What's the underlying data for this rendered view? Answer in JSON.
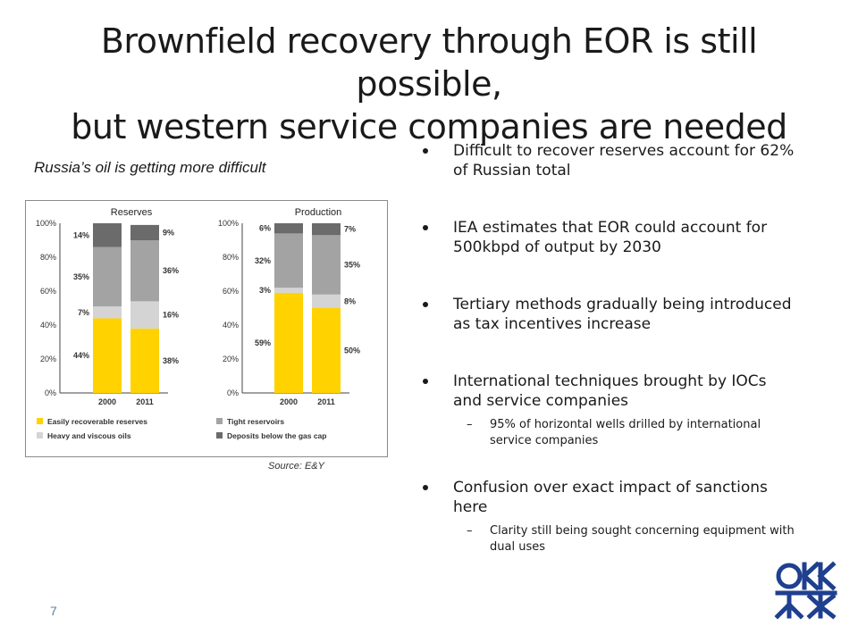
{
  "slide": {
    "title_line1": "Brownfield recovery through EOR is still possible,",
    "title_line2": "but western service companies are needed",
    "chart_caption": "Russia’s oil is getting more difficult",
    "source": "Source: E&Y",
    "page_number": "7",
    "logo": "okk-logo-icon"
  },
  "bullets": [
    {
      "text": "Difficult to recover reserves account for 62% of Russian total"
    },
    {
      "text": "IEA estimates that EOR could account for 500kbpd of output by 2030"
    },
    {
      "text": "Tertiary methods gradually being introduced as tax incentives increase"
    },
    {
      "text": "International techniques brought by IOCs and service companies",
      "sub": "95% of horizontal wells drilled by international service companies"
    },
    {
      "text": "Confusion over exact impact of sanctions here",
      "sub": "Clarity still being sought concerning equipment with dual uses"
    }
  ],
  "chart_data": [
    {
      "type": "bar",
      "stacked": true,
      "title": "Reserves",
      "categories": [
        "2000",
        "2011"
      ],
      "ylim": [
        0,
        100
      ],
      "yticks": [
        "0%",
        "20%",
        "40%",
        "60%",
        "80%",
        "100%"
      ],
      "series": [
        {
          "name": "Easily recoverable reserves",
          "values": [
            44,
            38
          ],
          "labels": [
            "44%",
            "38%"
          ],
          "color": "#ffd200"
        },
        {
          "name": "Heavy and viscous oils",
          "values": [
            7,
            16
          ],
          "labels": [
            "7%",
            "16%"
          ],
          "color": "#d4d4d4"
        },
        {
          "name": "Tight reservoirs",
          "values": [
            35,
            36
          ],
          "labels": [
            "35%",
            "36%"
          ],
          "color": "#a3a3a3"
        },
        {
          "name": "Deposits below the gas cap",
          "values": [
            14,
            9
          ],
          "labels": [
            "14%",
            "9%"
          ],
          "color": "#6b6b6b"
        }
      ]
    },
    {
      "type": "bar",
      "stacked": true,
      "title": "Production",
      "categories": [
        "2000",
        "2011"
      ],
      "ylim": [
        0,
        100
      ],
      "yticks": [
        "0%",
        "20%",
        "40%",
        "60%",
        "80%",
        "100%"
      ],
      "series": [
        {
          "name": "Easily recoverable reserves",
          "values": [
            59,
            50
          ],
          "labels": [
            "59%",
            "50%"
          ],
          "color": "#ffd200"
        },
        {
          "name": "Heavy and viscous oils",
          "values": [
            3,
            8
          ],
          "labels": [
            "3%",
            "8%"
          ],
          "color": "#d4d4d4"
        },
        {
          "name": "Tight reservoirs",
          "values": [
            32,
            35
          ],
          "labels": [
            "32%",
            "35%"
          ],
          "color": "#a3a3a3"
        },
        {
          "name": "Deposits below the gas cap",
          "values": [
            6,
            7
          ],
          "labels": [
            "6%",
            "7%"
          ],
          "color": "#6b6b6b"
        }
      ]
    }
  ]
}
